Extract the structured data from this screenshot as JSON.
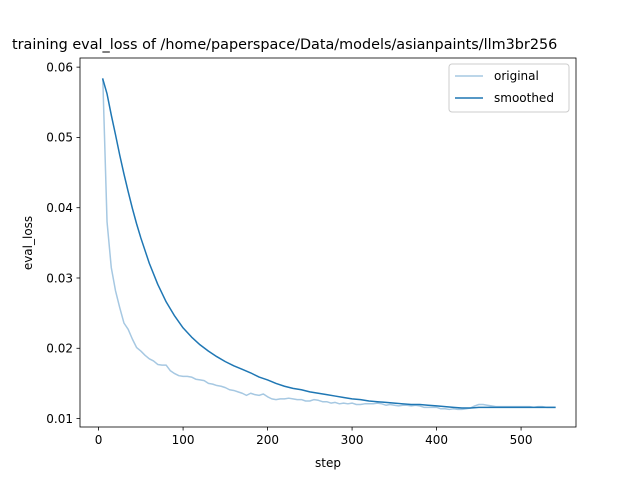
{
  "chart_data": {
    "type": "line",
    "title": "training eval_loss of /home/paperspace/Data/models/asianpaints/llm3br256",
    "xlabel": "step",
    "ylabel": "eval_loss",
    "xlim": [
      -22,
      565
    ],
    "ylim": [
      0.0088,
      0.0613
    ],
    "xticks": [
      0,
      100,
      200,
      300,
      400,
      500
    ],
    "yticks": [
      0.01,
      0.02,
      0.03,
      0.04,
      0.05,
      0.06
    ],
    "ytick_labels": [
      "0.01",
      "0.02",
      "0.03",
      "0.04",
      "0.05",
      "0.06"
    ],
    "legend_position": "top-right",
    "grid": false,
    "series": [
      {
        "name": "original",
        "color": "#a6c8e2",
        "x": [
          5,
          10,
          15,
          20,
          25,
          30,
          35,
          40,
          45,
          50,
          55,
          60,
          65,
          70,
          75,
          80,
          85,
          90,
          95,
          100,
          105,
          110,
          115,
          120,
          125,
          130,
          135,
          140,
          145,
          150,
          155,
          160,
          165,
          170,
          175,
          180,
          185,
          190,
          195,
          200,
          205,
          210,
          215,
          220,
          225,
          230,
          235,
          240,
          245,
          250,
          255,
          260,
          265,
          270,
          275,
          280,
          285,
          290,
          295,
          300,
          305,
          310,
          315,
          320,
          325,
          330,
          335,
          340,
          345,
          350,
          355,
          360,
          365,
          370,
          375,
          380,
          385,
          390,
          395,
          400,
          405,
          410,
          415,
          420,
          425,
          430,
          435,
          440,
          445,
          450,
          455,
          460,
          465,
          470,
          475,
          480,
          485,
          490,
          495,
          500,
          505,
          510,
          515,
          520,
          525,
          530,
          535,
          540
        ],
        "y": [
          0.0583,
          0.038,
          0.0315,
          0.0282,
          0.0258,
          0.0236,
          0.0227,
          0.0213,
          0.0201,
          0.0196,
          0.019,
          0.0185,
          0.0182,
          0.0177,
          0.0176,
          0.0176,
          0.0168,
          0.0164,
          0.0161,
          0.016,
          0.016,
          0.0159,
          0.0156,
          0.0155,
          0.0154,
          0.015,
          0.0149,
          0.0147,
          0.0146,
          0.0144,
          0.0141,
          0.014,
          0.0138,
          0.0136,
          0.0133,
          0.0136,
          0.0134,
          0.0133,
          0.0135,
          0.0131,
          0.0128,
          0.0127,
          0.0128,
          0.0128,
          0.0129,
          0.0128,
          0.0127,
          0.0127,
          0.0125,
          0.0125,
          0.0127,
          0.0126,
          0.0124,
          0.0124,
          0.0122,
          0.0123,
          0.0121,
          0.0122,
          0.0121,
          0.0122,
          0.012,
          0.012,
          0.0121,
          0.0121,
          0.0121,
          0.0122,
          0.0121,
          0.0119,
          0.012,
          0.0119,
          0.0118,
          0.0119,
          0.0119,
          0.0118,
          0.0119,
          0.0118,
          0.0116,
          0.0116,
          0.0116,
          0.0116,
          0.0114,
          0.0114,
          0.0113,
          0.0114,
          0.0113,
          0.0113,
          0.0114,
          0.0115,
          0.0118,
          0.012,
          0.012,
          0.0119,
          0.0118,
          0.0117,
          0.0117,
          0.0117,
          0.0117,
          0.0117,
          0.0117,
          0.0117,
          0.0117,
          0.0117,
          0.0116,
          0.0117,
          0.0117,
          0.0116,
          0.0116,
          0.0116
        ]
      },
      {
        "name": "smoothed",
        "color": "#1f77b4",
        "x": [
          5,
          10,
          15,
          20,
          25,
          30,
          35,
          40,
          45,
          50,
          60,
          70,
          80,
          90,
          100,
          110,
          120,
          130,
          140,
          150,
          160,
          170,
          180,
          190,
          200,
          210,
          220,
          230,
          240,
          250,
          260,
          270,
          280,
          290,
          300,
          310,
          320,
          330,
          340,
          350,
          360,
          370,
          380,
          390,
          400,
          410,
          420,
          430,
          440,
          450,
          460,
          470,
          480,
          490,
          500,
          510,
          520,
          530,
          540
        ],
        "y": [
          0.0583,
          0.0562,
          0.0532,
          0.0504,
          0.0475,
          0.0448,
          0.0423,
          0.0399,
          0.0377,
          0.0357,
          0.0321,
          0.0291,
          0.0266,
          0.0246,
          0.0229,
          0.0216,
          0.0205,
          0.0196,
          0.0188,
          0.0181,
          0.0175,
          0.017,
          0.0165,
          0.0159,
          0.0155,
          0.015,
          0.0146,
          0.0143,
          0.0141,
          0.0138,
          0.0136,
          0.0134,
          0.0132,
          0.013,
          0.0128,
          0.0127,
          0.0125,
          0.0124,
          0.0123,
          0.0122,
          0.0121,
          0.012,
          0.012,
          0.0119,
          0.0118,
          0.0117,
          0.0116,
          0.0115,
          0.0115,
          0.0116,
          0.0116,
          0.0116,
          0.0116,
          0.0116,
          0.0116,
          0.0116,
          0.0116,
          0.0116,
          0.0116
        ]
      }
    ]
  }
}
